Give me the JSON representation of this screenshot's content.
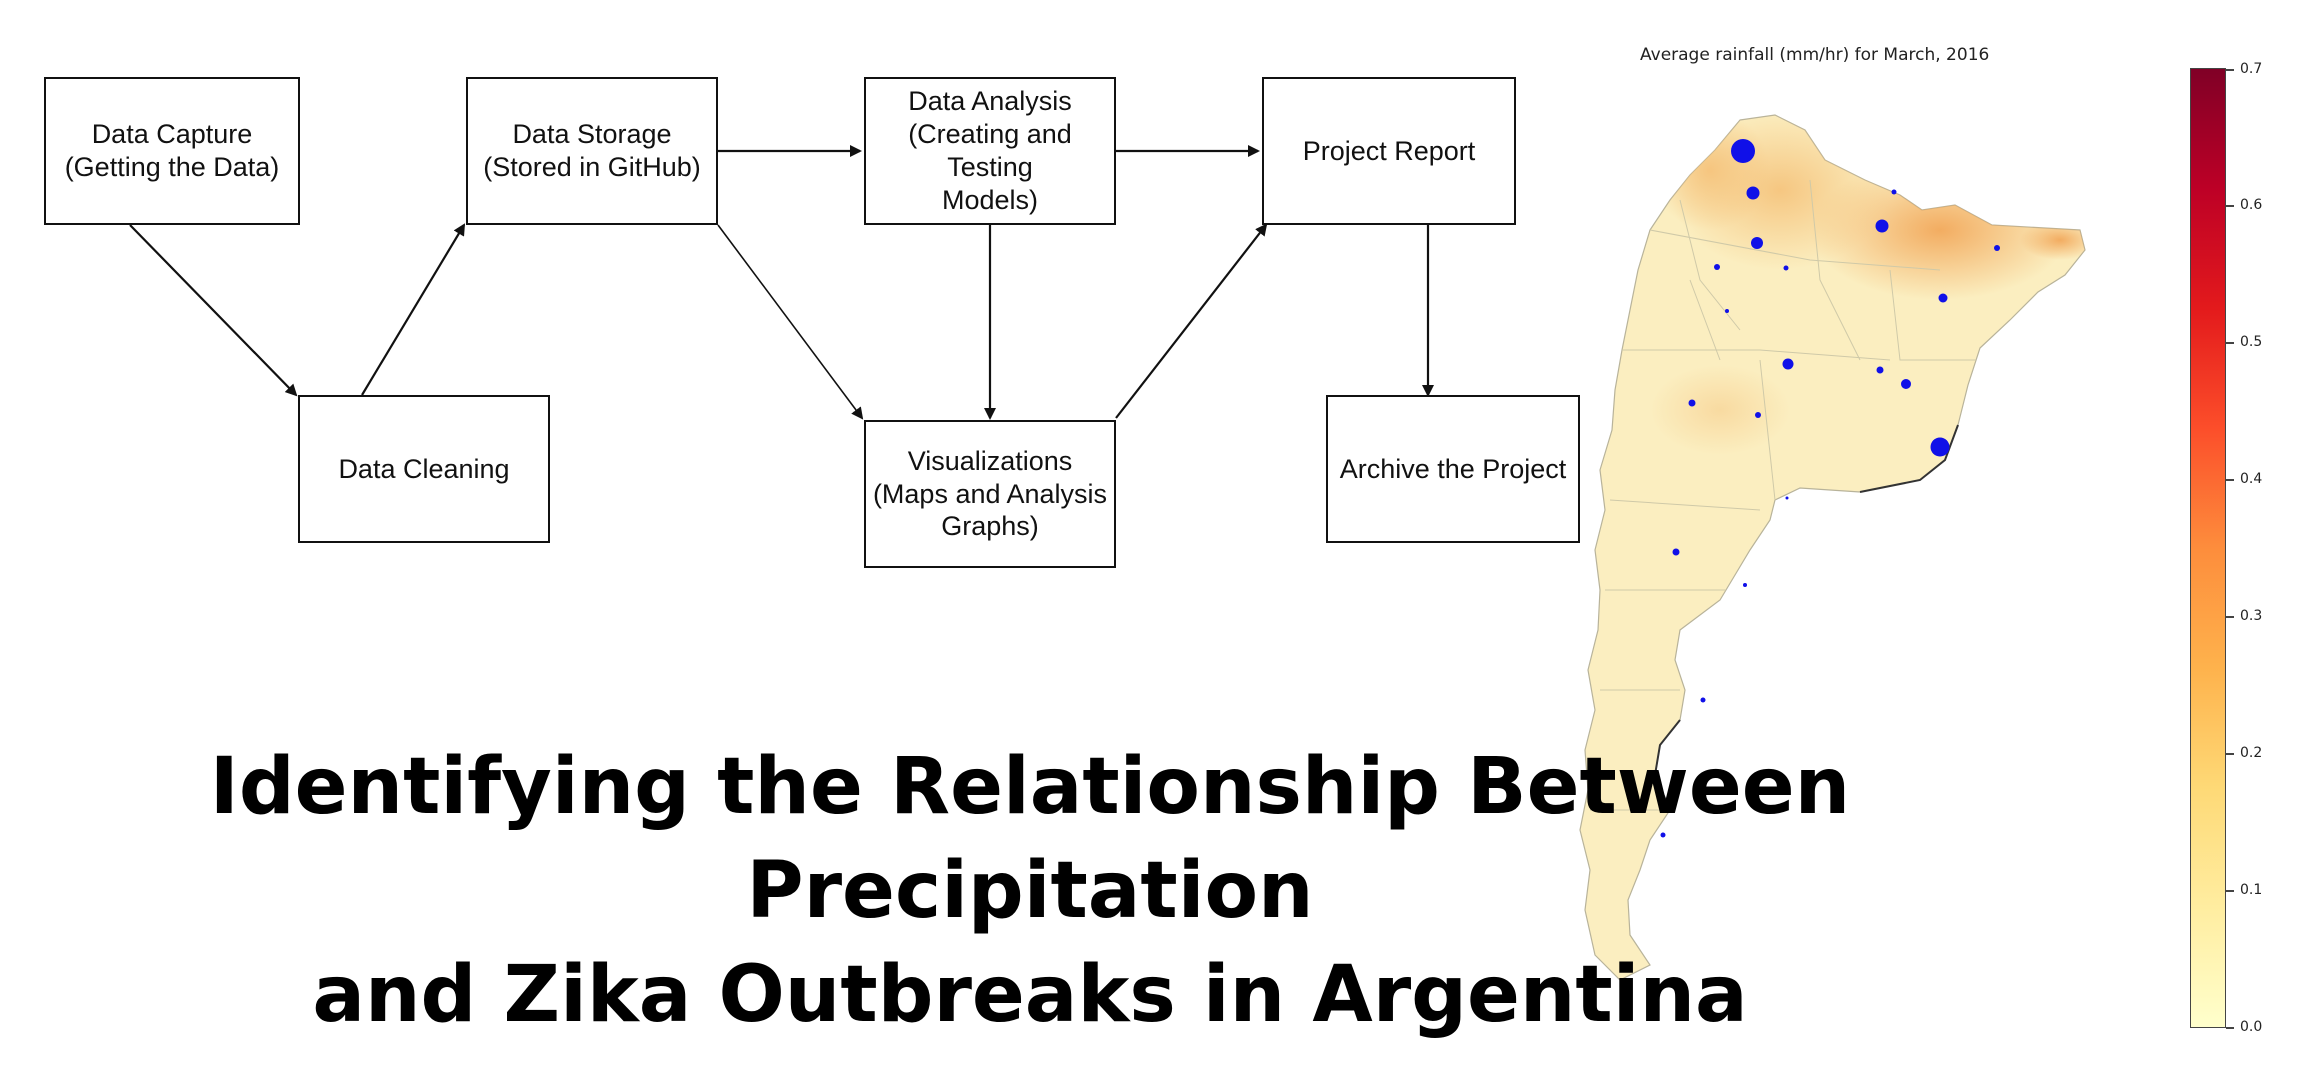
{
  "flowchart": {
    "nodes": [
      {
        "id": "capture",
        "label": "Data Capture\n(Getting the Data)"
      },
      {
        "id": "cleaning",
        "label": "Data Cleaning"
      },
      {
        "id": "storage",
        "label": "Data Storage\n(Stored in GitHub)"
      },
      {
        "id": "analysis",
        "label": "Data Analysis\n(Creating and Testing\nModels)"
      },
      {
        "id": "visualizations",
        "label": "Visualizations\n(Maps and Analysis\nGraphs)"
      },
      {
        "id": "report",
        "label": "Project Report"
      },
      {
        "id": "archive",
        "label": "Archive the Project"
      }
    ],
    "edges": [
      {
        "from": "capture",
        "to": "cleaning"
      },
      {
        "from": "cleaning",
        "to": "storage"
      },
      {
        "from": "storage",
        "to": "analysis"
      },
      {
        "from": "storage",
        "to": "visualizations"
      },
      {
        "from": "analysis",
        "to": "visualizations"
      },
      {
        "from": "analysis",
        "to": "report"
      },
      {
        "from": "visualizations",
        "to": "report"
      },
      {
        "from": "report",
        "to": "archive"
      }
    ]
  },
  "map": {
    "title": "Average rainfall (mm/hr) for March, 2016",
    "colorbar": {
      "min": 0.0,
      "max": 0.7,
      "ticks": [
        "0.0",
        "0.1",
        "0.2",
        "0.3",
        "0.4",
        "0.5",
        "0.6",
        "0.7"
      ],
      "colors": [
        "#ffffcc",
        "#fed976",
        "#fd8d3c",
        "#e31a1c",
        "#800026"
      ]
    },
    "marker_color": "#1010e8"
  },
  "headline": {
    "line1": "Identifying the Relationship Between Precipitation",
    "line2": "and Zika Outbreaks in Argentina"
  }
}
